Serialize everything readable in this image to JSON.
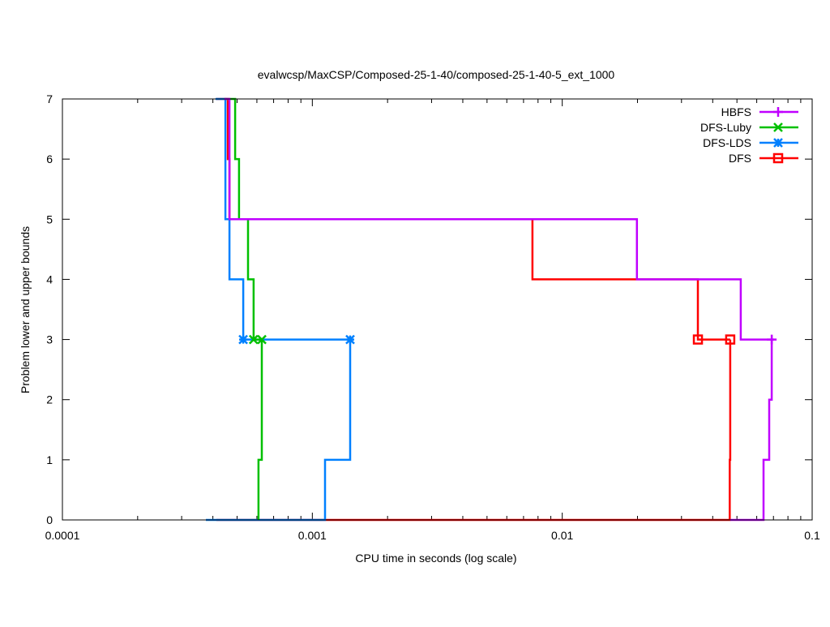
{
  "chart_data": {
    "type": "line",
    "title": "evalwcsp/MaxCSP/Composed-25-1-40/composed-25-1-40-5_ext_1000",
    "xlabel": "CPU time in seconds (log scale)",
    "ylabel": "Problem lower and upper bounds",
    "xscale": "log",
    "xlim": [
      0.0001,
      0.1
    ],
    "ylim": [
      0,
      7
    ],
    "xticks": [
      {
        "v": 0.0001,
        "label": "0.0001"
      },
      {
        "v": 0.001,
        "label": "0.001"
      },
      {
        "v": 0.01,
        "label": "0.01"
      },
      {
        "v": 0.1,
        "label": "0.1"
      }
    ],
    "yticks": [
      {
        "v": 0,
        "label": "0"
      },
      {
        "v": 1,
        "label": "1"
      },
      {
        "v": 2,
        "label": "2"
      },
      {
        "v": 3,
        "label": "3"
      },
      {
        "v": 4,
        "label": "4"
      },
      {
        "v": 5,
        "label": "5"
      },
      {
        "v": 6,
        "label": "6"
      },
      {
        "v": 7,
        "label": "7"
      }
    ],
    "grid": false,
    "legend_position": "top-right",
    "series": [
      {
        "name": "DFS",
        "color": "#ff0000",
        "marker": "square",
        "upper": [
          [
            0.000413,
            7
          ],
          [
            0.000459,
            7
          ],
          [
            0.000459,
            6
          ],
          [
            0.000466,
            6
          ],
          [
            0.000466,
            5
          ],
          [
            0.0076,
            5
          ],
          [
            0.0076,
            4
          ],
          [
            0.0349,
            4
          ],
          [
            0.0349,
            3
          ],
          [
            0.047,
            3
          ]
        ],
        "lower": [
          [
            0.000413,
            0
          ],
          [
            0.0468,
            0
          ],
          [
            0.0468,
            1
          ],
          [
            0.047,
            1
          ],
          [
            0.047,
            3
          ]
        ],
        "markers": [
          [
            0.0349,
            3
          ],
          [
            0.047,
            3
          ]
        ]
      },
      {
        "name": "DFS-LDS",
        "color": "#0080ff",
        "marker": "star",
        "upper": [
          [
            0.00041,
            7
          ],
          [
            0.000449,
            7
          ],
          [
            0.000449,
            5
          ],
          [
            0.000466,
            5
          ],
          [
            0.000466,
            4
          ],
          [
            0.000529,
            4
          ],
          [
            0.000529,
            3
          ],
          [
            0.001417,
            3
          ]
        ],
        "lower": [
          [
            0.000375,
            0
          ],
          [
            0.001124,
            0
          ],
          [
            0.001124,
            1
          ],
          [
            0.001417,
            1
          ],
          [
            0.001417,
            3
          ]
        ],
        "markers": [
          [
            0.000529,
            3
          ],
          [
            0.001417,
            3
          ]
        ]
      },
      {
        "name": "DFS-Luby",
        "color": "#00c000",
        "marker": "cross",
        "upper": [
          [
            0.000445,
            7
          ],
          [
            0.000491,
            7
          ],
          [
            0.000491,
            6
          ],
          [
            0.000509,
            6
          ],
          [
            0.000509,
            5
          ],
          [
            0.000553,
            5
          ],
          [
            0.000553,
            4
          ],
          [
            0.000582,
            4
          ],
          [
            0.000582,
            3
          ],
          [
            0.000628,
            3
          ]
        ],
        "lower": [
          [
            0.000609,
            0
          ],
          [
            0.000609,
            1
          ],
          [
            0.000628,
            1
          ],
          [
            0.000628,
            3
          ]
        ],
        "markers": [
          [
            0.000582,
            3
          ],
          [
            0.000628,
            3
          ]
        ]
      },
      {
        "name": "HBFS",
        "color": "#c000ff",
        "marker": "plus",
        "upper": [
          [
            0.000445,
            7
          ],
          [
            0.000466,
            7
          ],
          [
            0.000466,
            5
          ],
          [
            0.0199,
            5
          ],
          [
            0.0199,
            4
          ],
          [
            0.0518,
            4
          ],
          [
            0.0518,
            3
          ],
          [
            0.0704,
            3
          ]
        ],
        "lower": [
          [
            0.047,
            0
          ],
          [
            0.0639,
            0
          ],
          [
            0.0639,
            1
          ],
          [
            0.0673,
            1
          ],
          [
            0.0673,
            2
          ],
          [
            0.0689,
            2
          ],
          [
            0.0689,
            3
          ]
        ],
        "markers": [
          [
            0.0689,
            3
          ]
        ]
      }
    ],
    "legend": [
      "HBFS",
      "DFS-Luby",
      "DFS-LDS",
      "DFS"
    ]
  }
}
